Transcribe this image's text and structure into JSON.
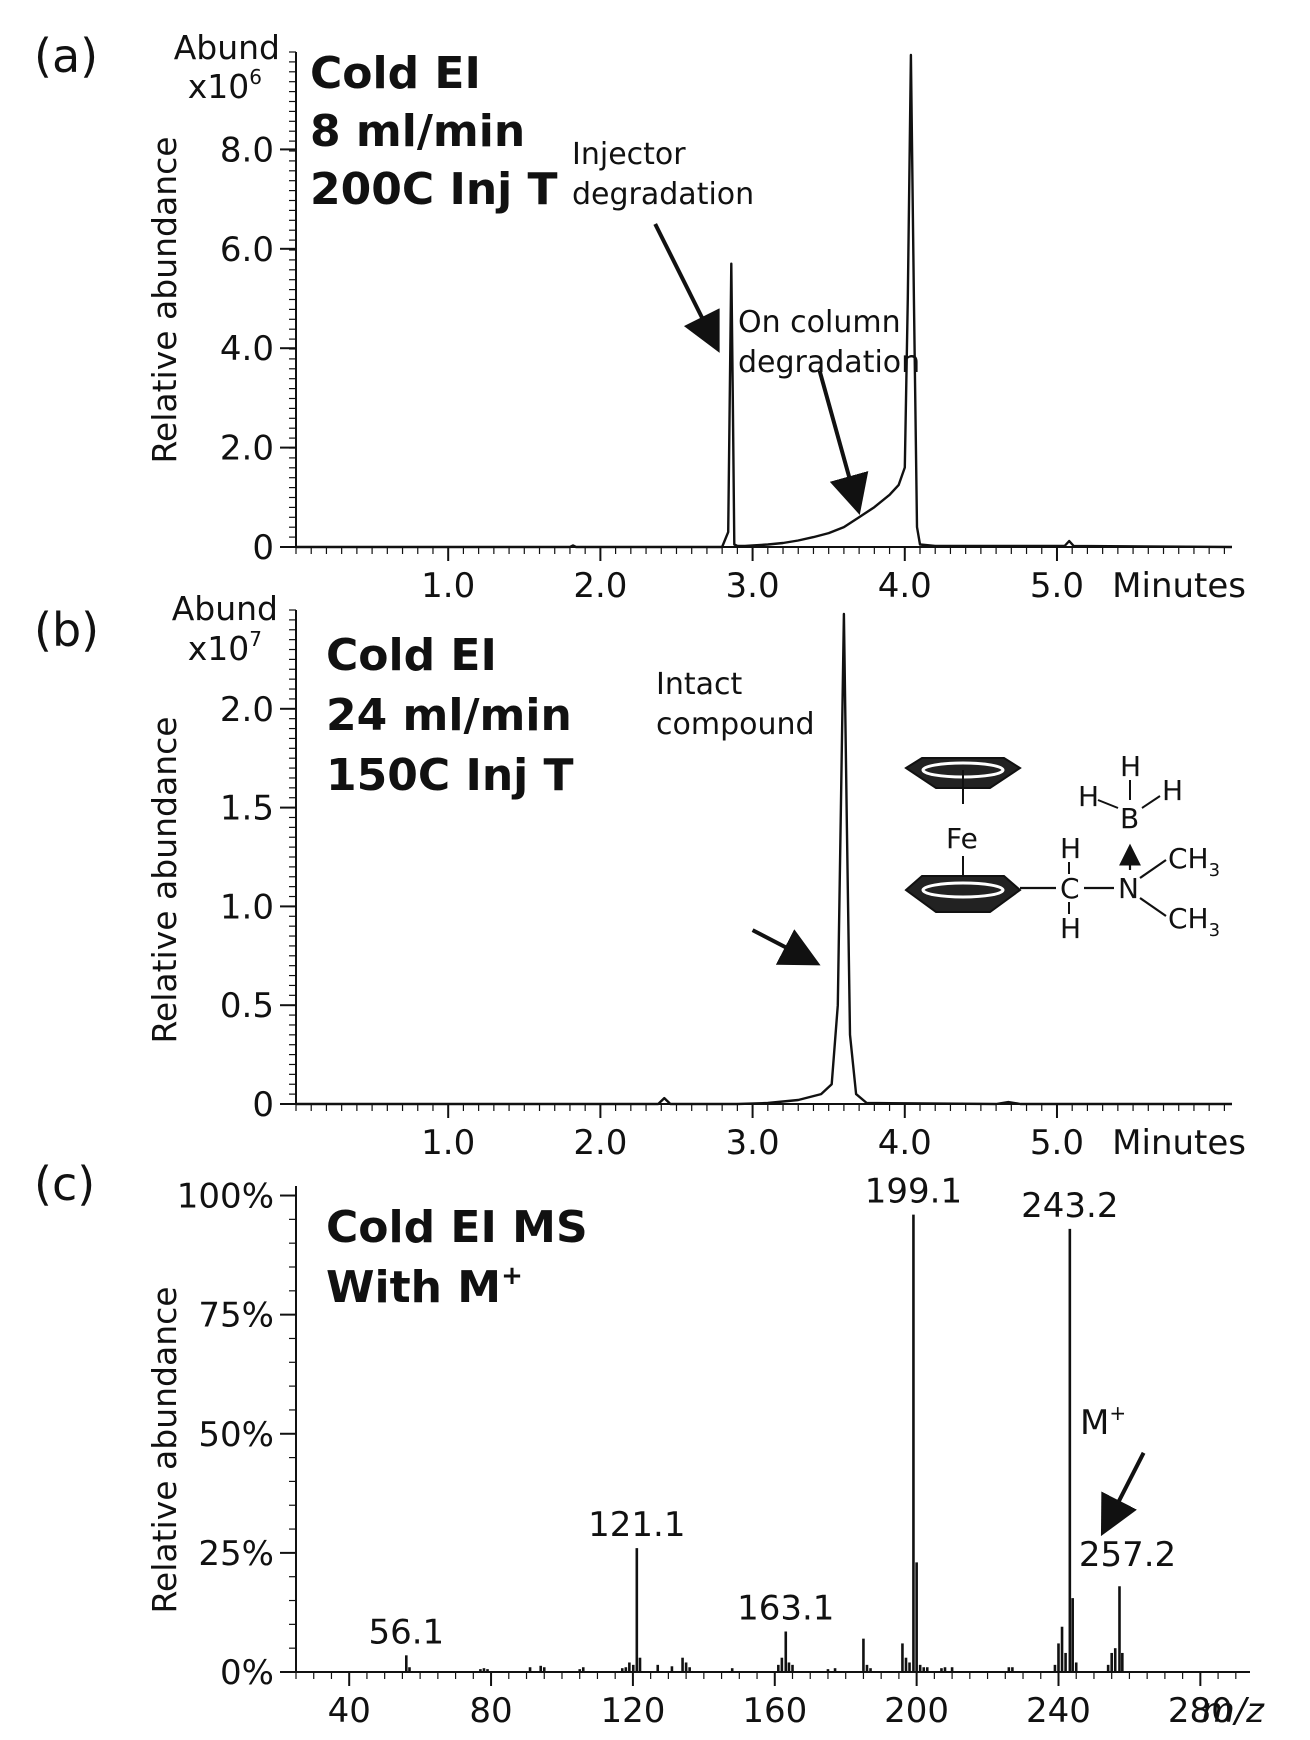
{
  "panels": [
    {
      "letter": "(a)",
      "headline": [
        "Cold EI",
        "8 ml/min",
        "200C Inj T"
      ],
      "annotations": [
        {
          "text": [
            "Injector",
            "degradation"
          ]
        },
        {
          "text": [
            "On column",
            "degradation"
          ]
        }
      ]
    },
    {
      "letter": "(b)",
      "headline": [
        "Cold EI",
        "24 ml/min",
        "150C Inj T"
      ],
      "annotations": [
        {
          "text": [
            "Intact",
            "compound"
          ]
        }
      ],
      "structure": {
        "atoms": {
          "Fe": "Fe",
          "H": "H",
          "B": "B",
          "C": "C",
          "N": "N",
          "CH": "CH",
          "sub3": "3"
        }
      }
    },
    {
      "letter": "(c)",
      "headline": [
        "Cold EI  MS",
        "With M"
      ],
      "headline_sup": "+",
      "mplus": {
        "text": "M",
        "sup": "+"
      }
    }
  ],
  "chart_data": [
    {
      "type": "line",
      "abund_label": [
        "Abund",
        "x10"
      ],
      "abund_exp": "6",
      "ylabel": "Relative abundance",
      "xlabel": "Minutes",
      "xlim": [
        0.0,
        6.15
      ],
      "ylim": [
        0.0,
        9.96
      ],
      "xticks": [
        1.0,
        2.0,
        3.0,
        4.0,
        5.0
      ],
      "xtick_labels": [
        "1.0",
        "2.0",
        "3.0",
        "4.0",
        "5.0"
      ],
      "yticks": [
        0,
        2.0,
        4.0,
        6.0,
        8.0
      ],
      "ytick_labels": [
        "0",
        "2.0",
        "4.0",
        "6.0",
        "8.0"
      ],
      "series": [
        {
          "x": [
            0.0,
            1.8,
            1.82,
            1.84,
            2.8,
            2.84,
            2.86,
            2.87,
            2.88,
            2.9,
            2.95,
            3.0,
            3.1,
            3.2,
            3.3,
            3.4,
            3.5,
            3.6,
            3.7,
            3.8,
            3.9,
            3.96,
            4.0,
            4.02,
            4.04,
            4.06,
            4.08,
            4.1,
            4.2,
            4.6,
            5.05,
            5.08,
            5.11,
            6.15
          ],
          "y": [
            0.0,
            0.0,
            0.03,
            0.0,
            0.0,
            0.3,
            5.7,
            3.0,
            0.05,
            0.02,
            0.02,
            0.03,
            0.05,
            0.08,
            0.13,
            0.2,
            0.28,
            0.4,
            0.6,
            0.8,
            1.05,
            1.25,
            1.6,
            5.0,
            9.9,
            5.0,
            0.4,
            0.05,
            0.02,
            0.02,
            0.02,
            0.12,
            0.02,
            0.0
          ]
        }
      ],
      "arrows": [
        {
          "from": [
            2.36,
            6.5
          ],
          "to": [
            2.76,
            4.05
          ]
        },
        {
          "from": [
            3.44,
            3.55
          ],
          "to": [
            3.69,
            0.8
          ]
        }
      ]
    },
    {
      "type": "line",
      "abund_label": [
        "Abund",
        "x10"
      ],
      "abund_exp": "7",
      "ylabel": "Relative abundance",
      "xlabel": "Minutes",
      "xlim": [
        0.0,
        6.15
      ],
      "ylim": [
        0.0,
        2.5
      ],
      "xticks": [
        1.0,
        2.0,
        3.0,
        4.0,
        5.0
      ],
      "xtick_labels": [
        "1.0",
        "2.0",
        "3.0",
        "4.0",
        "5.0"
      ],
      "yticks": [
        0,
        0.5,
        1.0,
        1.5,
        2.0
      ],
      "ytick_labels": [
        "0",
        "0.5",
        "1.0",
        "1.5",
        "2.0"
      ],
      "series": [
        {
          "x": [
            0.0,
            2.38,
            2.42,
            2.46,
            2.9,
            3.1,
            3.3,
            3.45,
            3.52,
            3.56,
            3.58,
            3.6,
            3.62,
            3.64,
            3.68,
            3.75,
            4.6,
            4.68,
            4.76,
            6.15
          ],
          "y": [
            0.0,
            0.0,
            0.03,
            0.0,
            0.0,
            0.005,
            0.02,
            0.05,
            0.1,
            0.5,
            1.5,
            2.48,
            1.4,
            0.35,
            0.05,
            0.005,
            0.0,
            0.01,
            0.0,
            0.0
          ]
        }
      ],
      "arrows": [
        {
          "from": [
            3.0,
            0.88
          ],
          "to": [
            3.4,
            0.72
          ]
        }
      ]
    },
    {
      "type": "bar",
      "ylabel": "Relative abundance",
      "xlabel": "m/z",
      "xlim": [
        25,
        294
      ],
      "ylim": [
        0,
        102
      ],
      "xticks": [
        40,
        80,
        120,
        160,
        200,
        240,
        280
      ],
      "xtick_labels": [
        "40",
        "80",
        "120",
        "160",
        "200",
        "240",
        "280"
      ],
      "yticks": [
        0,
        25,
        50,
        75,
        100
      ],
      "ytick_labels": [
        "0%",
        "25%",
        "50%",
        "75%",
        "100%"
      ],
      "peaks_mz": [
        56.1,
        57,
        77,
        78,
        79,
        91,
        94,
        95,
        105,
        106,
        117,
        118,
        119,
        120.1,
        121.1,
        122,
        127,
        131,
        134,
        135,
        136,
        148,
        161,
        162,
        163.1,
        164,
        165,
        175,
        177,
        185,
        186,
        187,
        196,
        197,
        198,
        199.1,
        200,
        201,
        202,
        203,
        207,
        208,
        210,
        226,
        227,
        239,
        240,
        241,
        242,
        243.2,
        244,
        245,
        254,
        255,
        256,
        257.2,
        258
      ],
      "peaks_int": [
        3.5,
        1,
        0.6,
        0.8,
        0.6,
        1,
        1.3,
        1,
        0.6,
        1,
        0.8,
        1,
        2,
        1.5,
        26,
        3,
        1.5,
        1.2,
        3,
        2,
        1,
        0.8,
        1.5,
        3,
        8.5,
        2,
        1.5,
        0.6,
        0.8,
        7,
        1.5,
        0.8,
        6,
        3,
        2,
        96,
        23,
        1.5,
        1,
        1,
        0.8,
        1,
        1,
        1,
        1,
        1.5,
        6,
        9.5,
        4,
        93,
        15.5,
        2,
        1.5,
        4,
        5,
        18,
        4
      ],
      "peak_labels": [
        {
          "mz": 56.1,
          "text": "56.1"
        },
        {
          "mz": 121.1,
          "text": "121.1"
        },
        {
          "mz": 163.1,
          "text": "163.1"
        },
        {
          "mz": 199.1,
          "text": "199.1"
        },
        {
          "mz": 243.2,
          "text": "243.2"
        },
        {
          "mz": 257.2,
          "text": "257.2"
        }
      ],
      "arrows": [
        {
          "from": [
            264,
            46
          ],
          "to": [
            253,
            30
          ]
        }
      ]
    }
  ]
}
